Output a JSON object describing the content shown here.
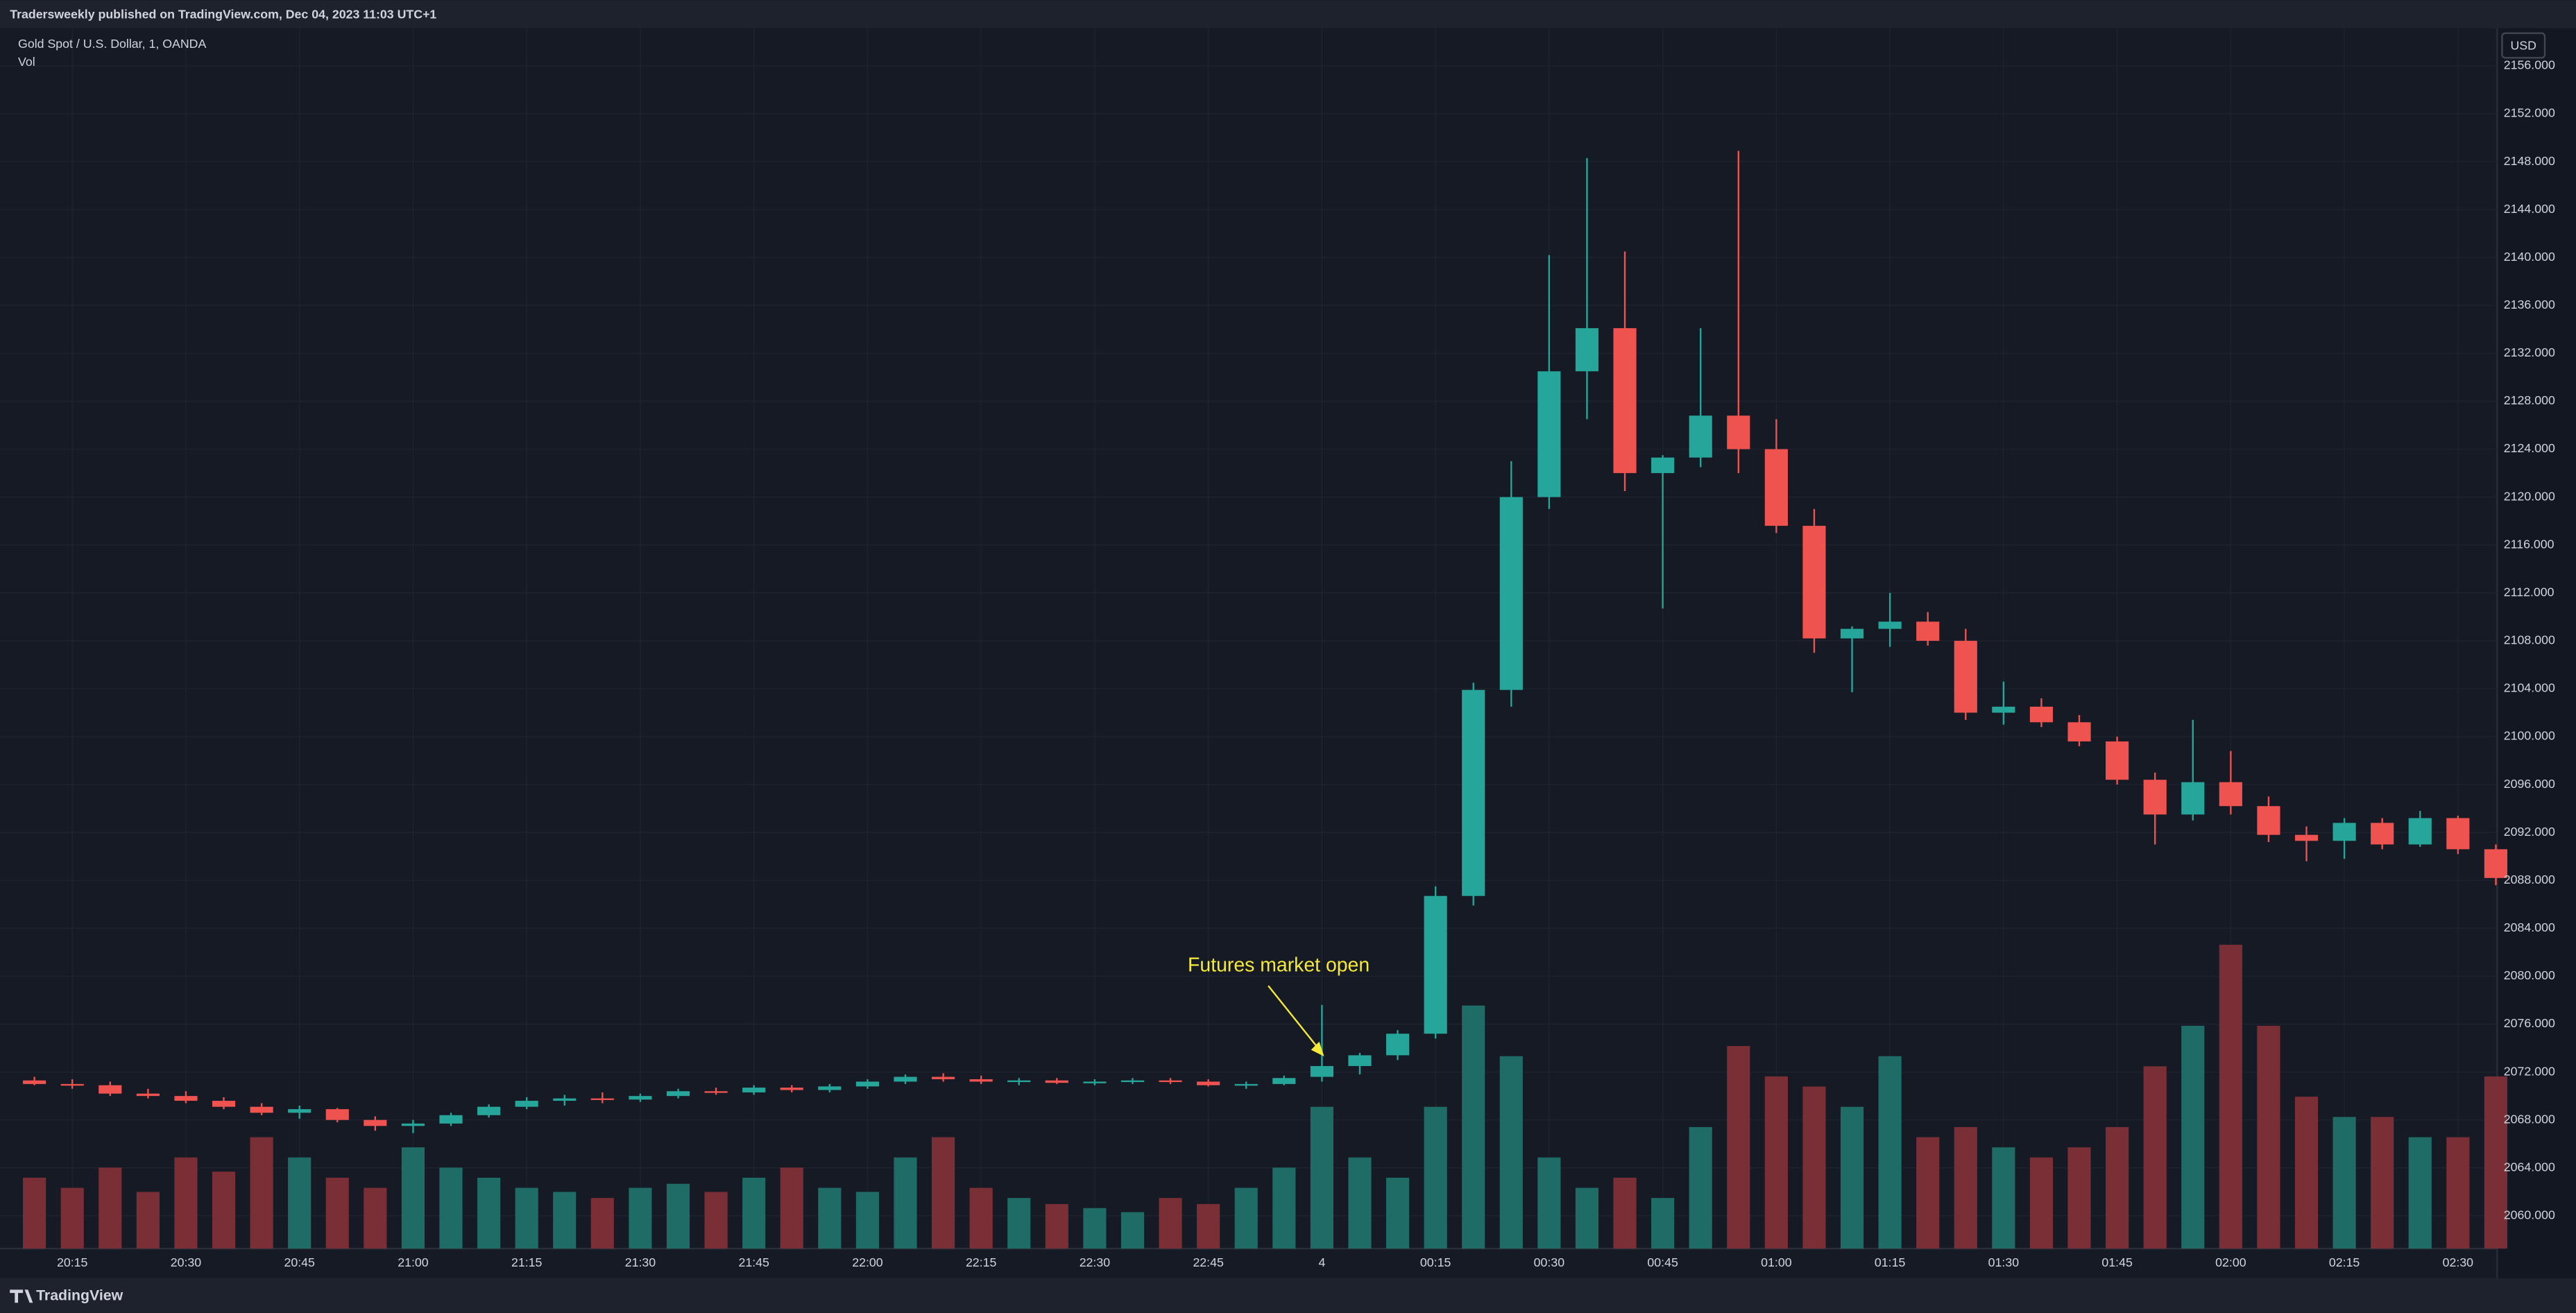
{
  "header": {
    "published": "Tradersweekly published on TradingView.com, Dec 04, 2023 11:03 UTC+1"
  },
  "chart_data": {
    "type": "candlestick",
    "title": "Gold Spot / U.S. Dollar, 1, OANDA",
    "volume_label": "Vol",
    "currency_label": "USD",
    "annotation": "Futures market open",
    "up_color": "#26a69a",
    "down_color": "#ef5350",
    "volume_up_color": "#1f6b66",
    "volume_down_color": "#7a2e35",
    "grid": true,
    "categories": [
      null,
      "20:15",
      null,
      null,
      "20:30",
      null,
      null,
      "20:45",
      null,
      null,
      "21:00",
      null,
      null,
      "21:15",
      null,
      null,
      "21:30",
      null,
      null,
      "21:45",
      null,
      null,
      "22:00",
      null,
      null,
      "22:15",
      null,
      null,
      "22:30",
      null,
      null,
      "22:45",
      null,
      null,
      "4",
      null,
      null,
      "00:15",
      null,
      null,
      "00:30",
      null,
      null,
      "00:45",
      null,
      null,
      "01:00",
      null,
      null,
      "01:15",
      null,
      null,
      "01:30",
      null,
      null,
      "01:45",
      null,
      null,
      "02:00",
      null,
      null,
      "02:15",
      null,
      null,
      "02:30",
      null
    ],
    "open": [
      2071.3,
      2071.0,
      2070.9,
      2070.2,
      2070.0,
      2069.6,
      2069.1,
      2068.6,
      2068.9,
      2068.0,
      2067.5,
      2067.7,
      2068.4,
      2069.1,
      2069.6,
      2069.8,
      2069.7,
      2070.0,
      2070.4,
      2070.3,
      2070.7,
      2070.5,
      2070.8,
      2071.2,
      2071.6,
      2071.4,
      2071.2,
      2071.3,
      2071.1,
      2071.2,
      2071.3,
      2071.2,
      2070.9,
      2071.0,
      2071.6,
      2072.5,
      2073.4,
      2075.2,
      2086.7,
      2103.9,
      2120.0,
      2130.5,
      2134.1,
      2122.0,
      2123.3,
      2126.8,
      2124.0,
      2117.6,
      2108.2,
      2109.0,
      2109.6,
      2108.0,
      2102.0,
      2102.5,
      2101.2,
      2099.6,
      2096.4,
      2093.5,
      2096.2,
      2094.2,
      2091.8,
      2091.3,
      2092.8,
      2091.0,
      2093.2,
      2090.6
    ],
    "high": [
      2071.6,
      2071.4,
      2071.2,
      2070.6,
      2070.4,
      2069.9,
      2069.4,
      2069.2,
      2069.0,
      2068.3,
      2068.0,
      2068.6,
      2069.3,
      2069.9,
      2070.1,
      2070.3,
      2070.2,
      2070.6,
      2070.7,
      2070.9,
      2070.9,
      2071.0,
      2071.4,
      2071.8,
      2071.9,
      2071.7,
      2071.5,
      2071.5,
      2071.4,
      2071.5,
      2071.5,
      2071.4,
      2071.2,
      2071.7,
      2077.6,
      2073.6,
      2075.5,
      2087.5,
      2104.5,
      2123.0,
      2140.2,
      2148.3,
      2140.5,
      2123.5,
      2134.1,
      2148.9,
      2126.5,
      2119.0,
      2109.2,
      2112.0,
      2110.4,
      2109.0,
      2104.6,
      2103.2,
      2101.8,
      2100.0,
      2097.0,
      2101.4,
      2098.8,
      2095.0,
      2092.5,
      2093.2,
      2093.2,
      2093.8,
      2093.4,
      2091.0
    ],
    "low": [
      2070.9,
      2070.6,
      2070.0,
      2069.8,
      2069.4,
      2068.9,
      2068.4,
      2068.1,
      2067.8,
      2067.1,
      2066.9,
      2067.5,
      2068.2,
      2068.9,
      2069.2,
      2069.4,
      2069.5,
      2069.8,
      2070.1,
      2070.1,
      2070.3,
      2070.3,
      2070.6,
      2071.0,
      2071.2,
      2071.0,
      2070.9,
      2071.0,
      2070.9,
      2071.0,
      2071.0,
      2070.8,
      2070.6,
      2070.9,
      2071.2,
      2071.8,
      2073.0,
      2074.8,
      2085.9,
      2102.5,
      2119.0,
      2126.5,
      2120.5,
      2110.7,
      2122.5,
      2122.0,
      2117.0,
      2107.0,
      2103.7,
      2107.5,
      2107.6,
      2101.4,
      2101.0,
      2100.8,
      2099.2,
      2096.0,
      2091.0,
      2093.0,
      2093.5,
      2091.2,
      2089.6,
      2089.8,
      2090.6,
      2090.8,
      2090.2,
      2087.6
    ],
    "close": [
      2071.0,
      2070.9,
      2070.2,
      2070.0,
      2069.6,
      2069.1,
      2068.6,
      2068.9,
      2068.0,
      2067.5,
      2067.7,
      2068.4,
      2069.1,
      2069.6,
      2069.8,
      2069.7,
      2070.0,
      2070.4,
      2070.3,
      2070.7,
      2070.5,
      2070.8,
      2071.2,
      2071.6,
      2071.4,
      2071.2,
      2071.3,
      2071.1,
      2071.2,
      2071.3,
      2071.2,
      2070.9,
      2071.0,
      2071.5,
      2072.5,
      2073.4,
      2075.2,
      2086.7,
      2103.9,
      2120.0,
      2130.5,
      2134.1,
      2122.0,
      2123.3,
      2126.8,
      2124.0,
      2117.6,
      2108.2,
      2109.0,
      2109.6,
      2108.0,
      2102.0,
      2102.5,
      2101.2,
      2099.6,
      2096.4,
      2093.5,
      2096.2,
      2094.2,
      2091.8,
      2091.3,
      2092.8,
      2091.0,
      2093.2,
      2090.6,
      2088.2
    ],
    "volume": [
      35,
      30,
      40,
      28,
      45,
      38,
      55,
      45,
      35,
      30,
      50,
      40,
      35,
      30,
      28,
      25,
      30,
      32,
      28,
      35,
      40,
      30,
      28,
      45,
      55,
      30,
      25,
      22,
      20,
      18,
      25,
      22,
      30,
      40,
      70,
      45,
      35,
      70,
      120,
      95,
      45,
      30,
      35,
      25,
      60,
      100,
      85,
      80,
      70,
      95,
      55,
      60,
      50,
      45,
      50,
      60,
      90,
      110,
      150,
      110,
      75,
      65,
      65,
      55,
      55,
      85
    ],
    "ylim": [
      2057.26,
      2159.0
    ],
    "yticks": [
      {
        "value": 2060,
        "label": "2060.000"
      },
      {
        "value": 2064,
        "label": "2064.000"
      },
      {
        "value": 2068,
        "label": "2068.000"
      },
      {
        "value": 2072,
        "label": "2072.000"
      },
      {
        "value": 2076,
        "label": "2076.000"
      },
      {
        "value": 2080,
        "label": "2080.000"
      },
      {
        "value": 2084,
        "label": "2084.000"
      },
      {
        "value": 2088,
        "label": "2088.000"
      },
      {
        "value": 2092,
        "label": "2092.000"
      },
      {
        "value": 2096,
        "label": "2096.000"
      },
      {
        "value": 2100,
        "label": "2100.000"
      },
      {
        "value": 2104,
        "label": "2104.000"
      },
      {
        "value": 2108,
        "label": "2108.000"
      },
      {
        "value": 2112,
        "label": "2112.000"
      },
      {
        "value": 2116,
        "label": "2116.000"
      },
      {
        "value": 2120,
        "label": "2120.000"
      },
      {
        "value": 2124,
        "label": "2124.000"
      },
      {
        "value": 2128,
        "label": "2128.000"
      },
      {
        "value": 2132,
        "label": "2132.000"
      },
      {
        "value": 2136,
        "label": "2136.000"
      },
      {
        "value": 2140,
        "label": "2140.000"
      },
      {
        "value": 2144,
        "label": "2144.000"
      },
      {
        "value": 2148,
        "label": "2148.000"
      },
      {
        "value": 2152,
        "label": "2152.000"
      },
      {
        "value": 2156,
        "label": "2156.000"
      }
    ]
  },
  "footer": {
    "brand": "TradingView"
  }
}
